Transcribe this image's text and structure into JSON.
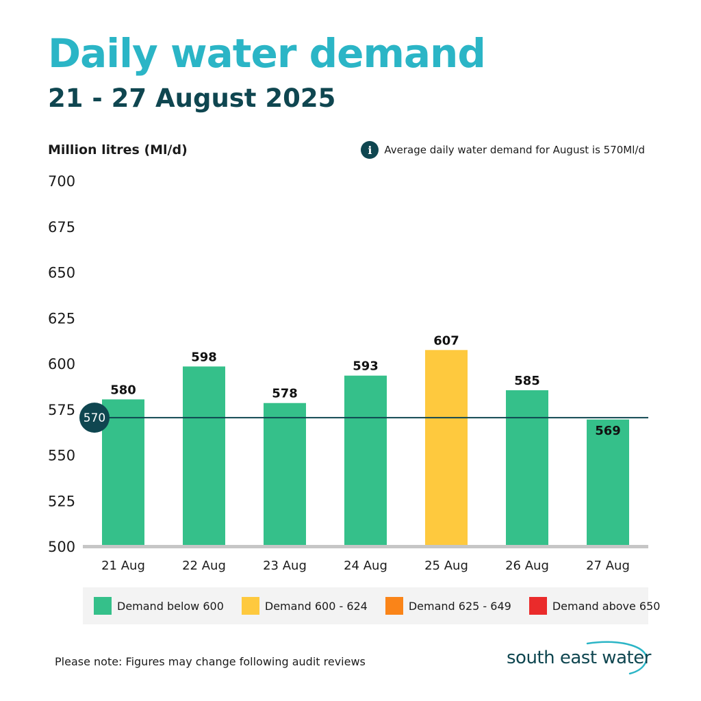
{
  "header": {
    "title": "Daily water demand",
    "subtitle": "21 - 27 August 2025"
  },
  "note": {
    "icon": "info-icon",
    "icon_glyph": "i",
    "text": "Average daily water demand for August is 570Ml/d"
  },
  "chart_data": {
    "type": "bar",
    "title": "Daily water demand",
    "subtitle": "21 - 27 August 2025",
    "ylabel": "Million litres (Ml/d)",
    "xlabel": "",
    "ylim": [
      500,
      700
    ],
    "yticks": [
      500,
      525,
      550,
      575,
      600,
      625,
      650,
      675,
      700
    ],
    "grid": false,
    "categories": [
      "21 Aug",
      "22 Aug",
      "23 Aug",
      "24 Aug",
      "25 Aug",
      "26 Aug",
      "27 Aug"
    ],
    "values": [
      580,
      598,
      578,
      593,
      607,
      585,
      569
    ],
    "reference_line": {
      "value": 570,
      "label": "570"
    },
    "color_bands": [
      {
        "label": "Demand below 600",
        "min": null,
        "max": 599,
        "color": "#35c08a"
      },
      {
        "label": "Demand 600 - 624",
        "min": 600,
        "max": 624,
        "color": "#fec93e"
      },
      {
        "label": "Demand 625 - 649",
        "min": 625,
        "max": 649,
        "color": "#fa8418"
      },
      {
        "label": "Demand above 650",
        "min": 650,
        "max": null,
        "color": "#ea2b2b"
      }
    ]
  },
  "colors": {
    "accent": "#2bb5c6",
    "dark": "#0f4650",
    "axis": "#c6c6c6"
  },
  "footer": {
    "note": "Please note: Figures may change following audit reviews",
    "logo_text": "south east water"
  }
}
